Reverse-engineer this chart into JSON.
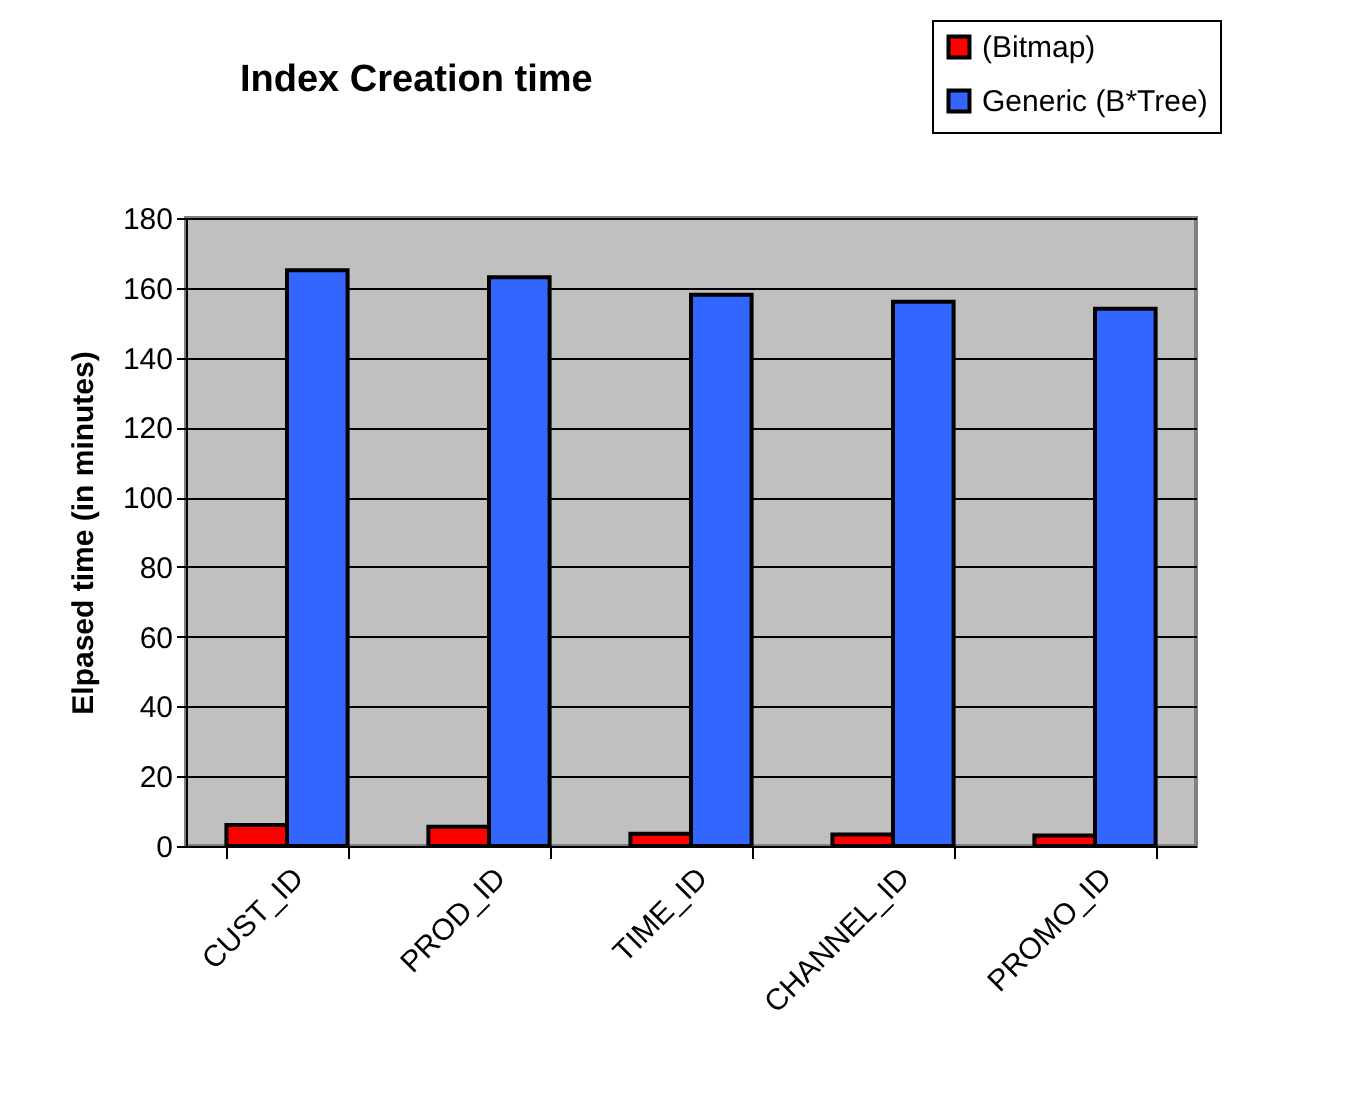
{
  "chart_data": {
    "type": "bar",
    "title": "Index Creation time",
    "ylabel": "Elpased time (in minutes)",
    "categories": [
      "CUST_ID",
      "PROD_ID",
      "TIME_ID",
      "CHANNEL_ID",
      "PROMO_ID"
    ],
    "series": [
      {
        "name": "(Bitmap)",
        "color": "#ff0000",
        "values": [
          6,
          5.5,
          3.5,
          3.3,
          3
        ]
      },
      {
        "name": "Generic (B*Tree)",
        "color": "#3366ff",
        "values": [
          165,
          163,
          158,
          156,
          154
        ]
      }
    ],
    "ylim": [
      0,
      180
    ],
    "yticks": [
      0,
      20,
      40,
      60,
      80,
      100,
      120,
      140,
      160,
      180
    ],
    "grid": "y",
    "legend": "top right"
  }
}
